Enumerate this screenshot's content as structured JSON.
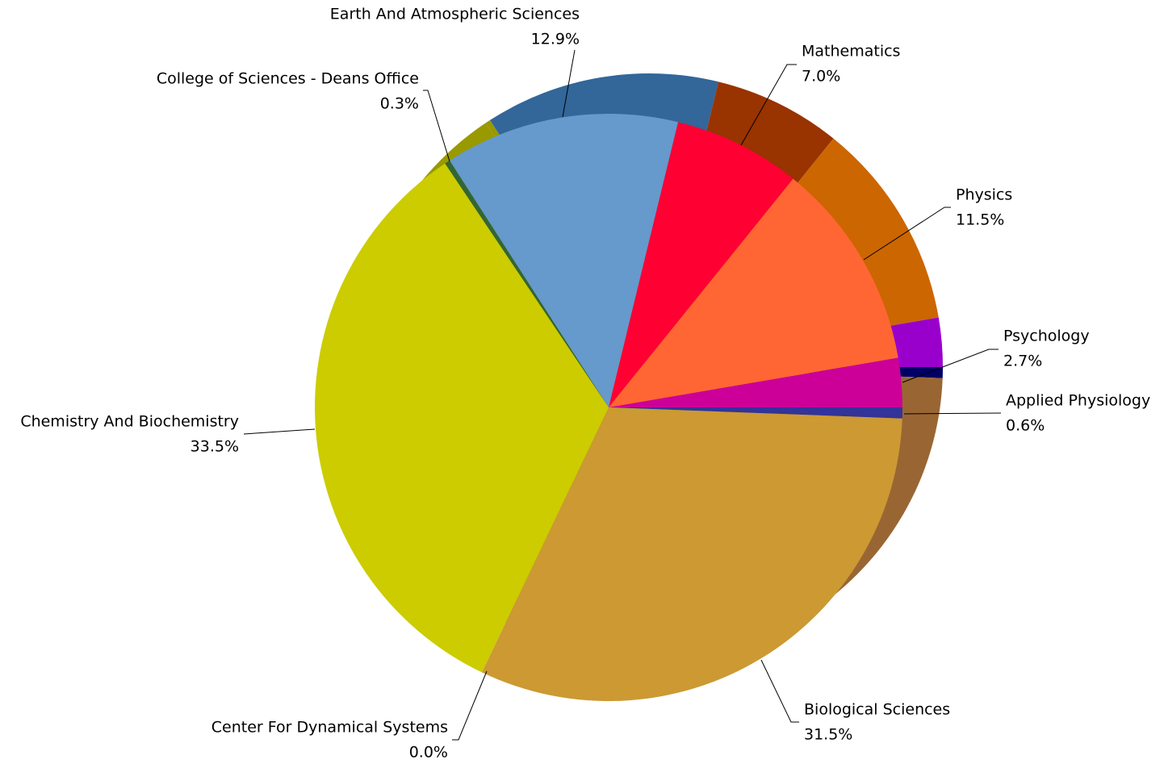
{
  "chart_data": {
    "type": "pie",
    "categories": [
      "Applied Physiology",
      "Biological Sciences",
      "Center For Dynamical Systems",
      "Chemistry And Biochemistry",
      "College of Sciences - Deans Office",
      "Earth And Atmospheric Sciences",
      "Mathematics",
      "Physics",
      "Psychology"
    ],
    "values": [
      0.6,
      31.5,
      0.0,
      33.5,
      0.3,
      12.9,
      7.0,
      11.5,
      2.7
    ],
    "value_labels": [
      "0.6%",
      "31.5%",
      "0.0%",
      "33.5%",
      "0.3%",
      "12.9%",
      "7.0%",
      "11.5%",
      "2.7%"
    ],
    "colors": [
      "#333399",
      "#cc9933",
      "#996699",
      "#cccc00",
      "#336633",
      "#6699cc",
      "#ff0033",
      "#ff6633",
      "#cc0099"
    ],
    "side_colors": [
      "#000066",
      "#996633",
      "#663366",
      "#999900",
      "#999900",
      "#336699",
      "#993300",
      "#cc6600",
      "#9900cc"
    ]
  }
}
